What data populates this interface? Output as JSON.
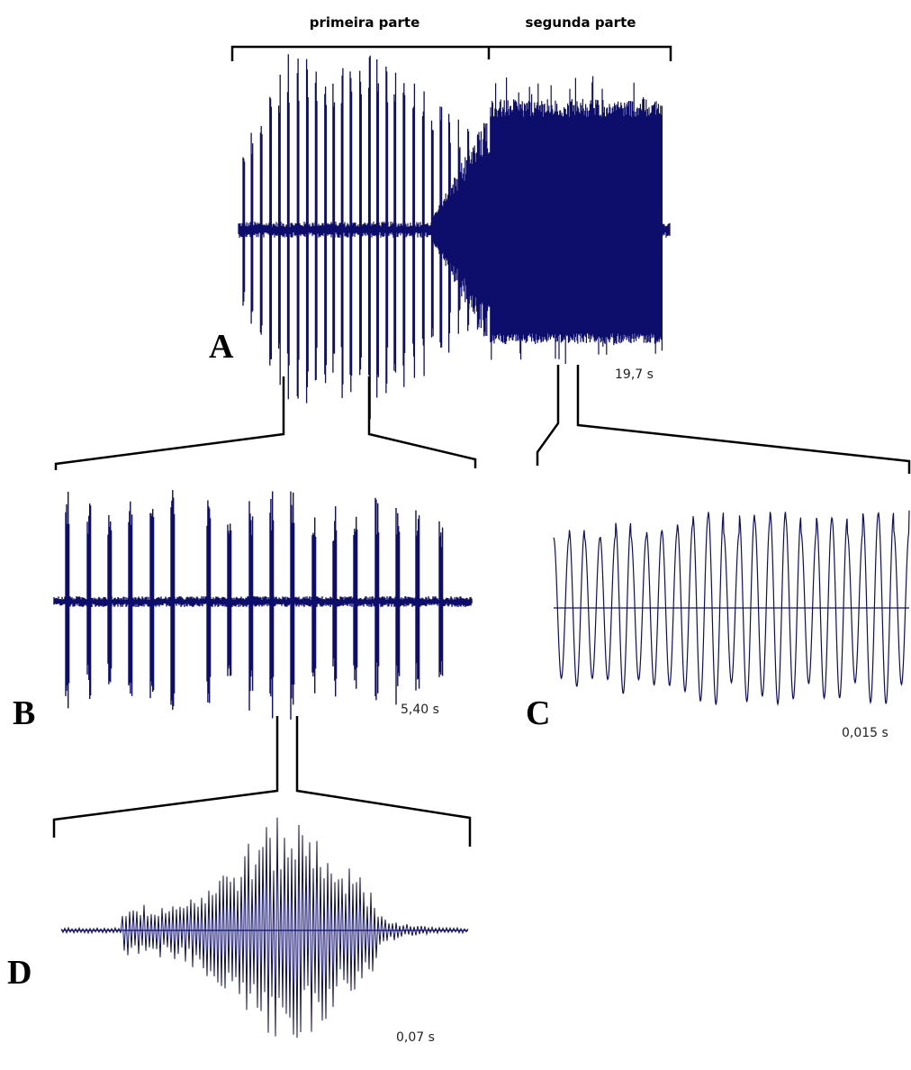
{
  "header": {
    "first_part": "primeira parte",
    "second_part": "segunda parte"
  },
  "panels": [
    {
      "label": "A",
      "duration": "19,7 s"
    },
    {
      "label": "B",
      "duration": "5,40 s"
    },
    {
      "label": "C",
      "duration": "0,015 s"
    },
    {
      "label": "D",
      "duration": "0,07 s"
    }
  ]
}
